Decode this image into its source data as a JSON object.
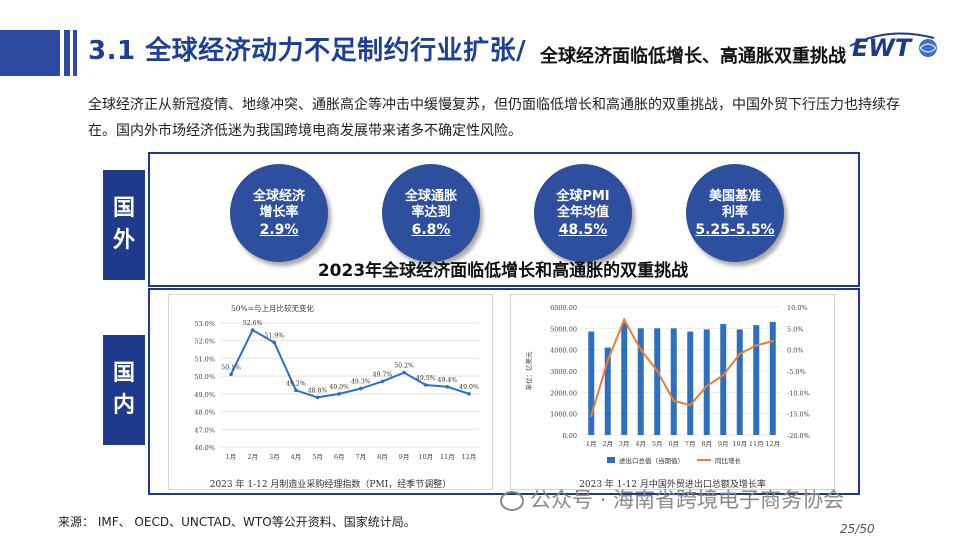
{
  "header": {
    "title_main": "3.1 全球经济动力不足制约行业扩张/",
    "title_sub": "全球经济面临低增长、高通胀双重挑战",
    "logo_text": "EWT"
  },
  "intro": "全球经济正从新冠疫情、地缘冲突、通胀高企等冲击中缓慢复苏，但仍面临低增长和高通胀的双重挑战，中国外贸下行压力也持续存在。国内外市场经济低迷为我国跨境电商发展带来诸多不确定性风险。",
  "side_tabs": {
    "foreign": [
      "国",
      "外"
    ],
    "domestic": [
      "国",
      "内"
    ]
  },
  "indicators": [
    {
      "label_lines": [
        "全球经济",
        "增长率"
      ],
      "value": "2.9%"
    },
    {
      "label_lines": [
        "全球通胀",
        "率达到"
      ],
      "value": "6.8%"
    },
    {
      "label_lines": [
        "全球PMI",
        "全年均值"
      ],
      "value": "48.5%"
    },
    {
      "label_lines": [
        "美国基准",
        "利率"
      ],
      "value": "5.25-5.5%"
    }
  ],
  "band_title": "2023年全球经济面临低增长和高通胀的双重挑战",
  "chart_data": [
    {
      "type": "line",
      "title": "2023 年 1-12 月制造业采购经理指数（PMI，经季节调整）",
      "annotation": "50%=与上月比较无变化",
      "categories": [
        "1月",
        "2月",
        "3月",
        "4月",
        "5月",
        "6月",
        "7月",
        "8月",
        "9月",
        "10月",
        "11月",
        "12月"
      ],
      "values": [
        50.1,
        52.6,
        51.9,
        49.2,
        48.8,
        49.0,
        49.3,
        49.7,
        50.2,
        49.5,
        49.4,
        49.0
      ],
      "data_labels": [
        "50.1%",
        "52.6%",
        "51.9%",
        "49.2%",
        "48.8%",
        "49.0%",
        "49.3%",
        "49.7%",
        "50.2%",
        "49.5%",
        "49.4%",
        "49.0%"
      ],
      "y_ticks": [
        "46.0%",
        "47.0%",
        "48.0%",
        "49.0%",
        "50.0%",
        "51.0%",
        "52.0%",
        "53.0%"
      ],
      "ylim": [
        46,
        53
      ],
      "color": "#2e6fc0"
    },
    {
      "type": "bar+line",
      "title": "2023 年 1-12 月中国外贸进出口总额及增长率",
      "ylabel": "单位：亿美元",
      "categories": [
        "1月",
        "2月",
        "3月",
        "4月",
        "5月",
        "6月",
        "7月",
        "8月",
        "9月",
        "10月",
        "11月",
        "12月"
      ],
      "series": [
        {
          "name": "进出口总值（当期值）",
          "type": "bar",
          "axis": "left",
          "color": "#2e6fc0",
          "values": [
            4850,
            4100,
            5250,
            5000,
            5000,
            5000,
            4850,
            4950,
            5200,
            4950,
            5150,
            5300
          ]
        },
        {
          "name": "同比增长",
          "type": "line",
          "axis": "right",
          "color": "#ed7d31",
          "values": [
            -15.5,
            -2.5,
            7.0,
            0.0,
            -5.0,
            -12.0,
            -13.0,
            -8.5,
            -6.0,
            -1.0,
            1.0,
            2.0
          ]
        }
      ],
      "y_left_ticks": [
        "0.00",
        "1000.00",
        "2000.00",
        "3000.00",
        "4000.00",
        "5000.00",
        "6000.00"
      ],
      "y_right_ticks": [
        "-20.0%",
        "-15.0%",
        "-10.0%",
        "-5.0%",
        "0.0%",
        "5.0%",
        "10.0%"
      ],
      "ylim_left": [
        0,
        6000
      ],
      "ylim_right": [
        -20,
        10
      ]
    }
  ],
  "source": "来源： IMF、 OECD、UNCTAD、WTO等公开资料、国家统计局。",
  "watermark": "公众号 · 海南省跨境电子商务协会",
  "page": "25/50",
  "colors": {
    "brand": "#1f3a8a",
    "circle": "#2e4e9e"
  }
}
